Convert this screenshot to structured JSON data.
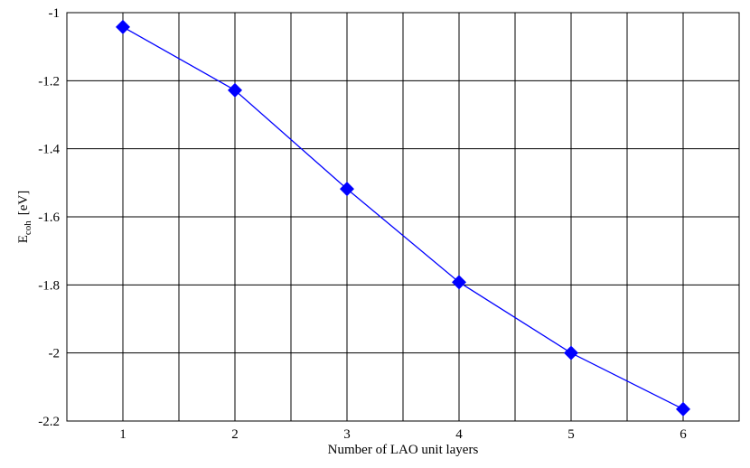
{
  "chart_data": {
    "type": "line",
    "x_label": "Number of LAO unit layers",
    "y_label": {
      "symbol": "E",
      "subscript": "coh",
      "unit": "[eV]"
    },
    "x": [
      1,
      2,
      3,
      4,
      5,
      6
    ],
    "series": [
      {
        "color": "#0000ff",
        "marker": "diamond",
        "values": [
          -1.042,
          -1.228,
          -1.518,
          -1.792,
          -2.0,
          -2.165
        ]
      }
    ],
    "xlim": [
      0.5,
      6.5
    ],
    "xticks": [
      1,
      2,
      3,
      4,
      5,
      6
    ],
    "x_minor_grid": [
      1.5,
      2.5,
      3.5,
      4.5,
      5.5
    ],
    "ylim": [
      -2.2,
      -1
    ],
    "yticks": [
      -1,
      -1.2,
      -1.4,
      -1.6,
      -1.8,
      -2,
      -2.2
    ],
    "grid": true
  }
}
